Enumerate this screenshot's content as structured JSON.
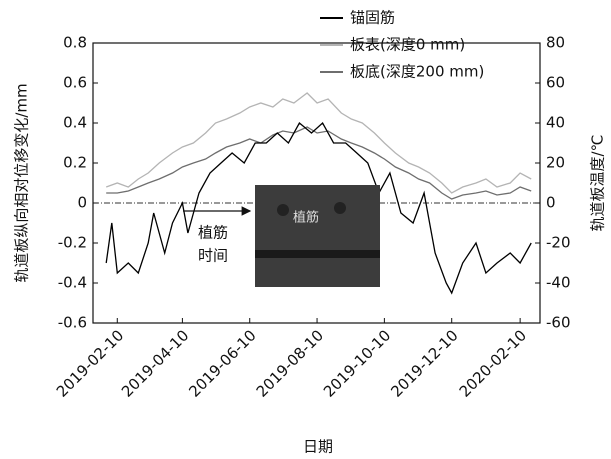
{
  "chart_data": {
    "type": "line",
    "x_label": "日期",
    "y_label": "轨道板纵向相对位移变化/mm",
    "y2_label": "轨道板温度/℃",
    "xlim": [
      "2019-01-19",
      "2020-02-28"
    ],
    "xticks": [
      "2019-02-10",
      "2019-04-10",
      "2019-06-10",
      "2019-08-10",
      "2019-10-10",
      "2019-12-10",
      "2020-02-10"
    ],
    "ylim": [
      -0.6,
      0.8
    ],
    "yticks": [
      0.8,
      0.6,
      0.4,
      0.2,
      0,
      -0.2,
      -0.4,
      -0.6
    ],
    "y2lim": [
      -60,
      80
    ],
    "y2ticks": [
      80,
      60,
      40,
      20,
      0,
      -20,
      -40,
      -60
    ],
    "reference_line": 0,
    "annotation": [
      "植筋",
      "时间"
    ],
    "inset_text": "植筋",
    "series": [
      {
        "name": "板表(深度0 mm)",
        "color": "#b4b4b4",
        "axis": "y2",
        "x": [
          "2019-01-31",
          "2019-02-10",
          "2019-02-20",
          "2019-03-01",
          "2019-03-10",
          "2019-03-20",
          "2019-04-01",
          "2019-04-10",
          "2019-04-20",
          "2019-05-01",
          "2019-05-10",
          "2019-05-20",
          "2019-06-01",
          "2019-06-10",
          "2019-06-20",
          "2019-07-01",
          "2019-07-10",
          "2019-07-20",
          "2019-08-01",
          "2019-08-10",
          "2019-08-20",
          "2019-09-01",
          "2019-09-10",
          "2019-09-20",
          "2019-10-01",
          "2019-10-10",
          "2019-10-20",
          "2019-11-01",
          "2019-11-10",
          "2019-11-20",
          "2019-12-01",
          "2019-12-10",
          "2019-12-20",
          "2020-01-01",
          "2020-01-10",
          "2020-01-20",
          "2020-02-01",
          "2020-02-10",
          "2020-02-20"
        ],
        "values": [
          8,
          10,
          8,
          12,
          15,
          20,
          25,
          28,
          30,
          35,
          40,
          42,
          45,
          48,
          50,
          48,
          52,
          50,
          55,
          50,
          52,
          45,
          42,
          40,
          35,
          30,
          25,
          20,
          18,
          15,
          10,
          5,
          8,
          10,
          12,
          8,
          10,
          15,
          12
        ]
      },
      {
        "name": "板底(深度200 mm)",
        "color": "#6e6e6e",
        "axis": "y2",
        "x": [
          "2019-01-31",
          "2019-02-10",
          "2019-02-20",
          "2019-03-01",
          "2019-03-10",
          "2019-03-20",
          "2019-04-01",
          "2019-04-10",
          "2019-04-20",
          "2019-05-01",
          "2019-05-10",
          "2019-05-20",
          "2019-06-01",
          "2019-06-10",
          "2019-06-20",
          "2019-07-01",
          "2019-07-10",
          "2019-07-20",
          "2019-08-01",
          "2019-08-10",
          "2019-08-20",
          "2019-09-01",
          "2019-09-10",
          "2019-09-20",
          "2019-10-01",
          "2019-10-10",
          "2019-10-20",
          "2019-11-01",
          "2019-11-10",
          "2019-11-20",
          "2019-12-01",
          "2019-12-10",
          "2019-12-20",
          "2020-01-01",
          "2020-01-10",
          "2020-01-20",
          "2020-02-01",
          "2020-02-10",
          "2020-02-20"
        ],
        "values": [
          5,
          5,
          6,
          8,
          10,
          12,
          15,
          18,
          20,
          22,
          25,
          28,
          30,
          32,
          30,
          34,
          36,
          35,
          38,
          35,
          36,
          32,
          30,
          28,
          25,
          22,
          18,
          15,
          12,
          10,
          5,
          2,
          4,
          5,
          6,
          4,
          5,
          8,
          6
        ]
      },
      {
        "name": "锚固筋",
        "color": "#000000",
        "axis": "y",
        "x": [
          "2019-01-31",
          "2019-02-05",
          "2019-02-10",
          "2019-02-20",
          "2019-03-01",
          "2019-03-10",
          "2019-03-15",
          "2019-03-25",
          "2019-04-01",
          "2019-04-10",
          "2019-04-15",
          "2019-04-25",
          "2019-05-05",
          "2019-05-15",
          "2019-05-25",
          "2019-06-05",
          "2019-06-15",
          "2019-06-25",
          "2019-07-05",
          "2019-07-15",
          "2019-07-25",
          "2019-08-05",
          "2019-08-15",
          "2019-08-25",
          "2019-09-05",
          "2019-09-15",
          "2019-09-25",
          "2019-10-05",
          "2019-10-15",
          "2019-10-25",
          "2019-11-05",
          "2019-11-15",
          "2019-11-25",
          "2019-12-05",
          "2019-12-10",
          "2019-12-20",
          "2020-01-01",
          "2020-01-10",
          "2020-01-20",
          "2020-02-01",
          "2020-02-10",
          "2020-02-20"
        ],
        "values": [
          -0.3,
          -0.1,
          -0.35,
          -0.3,
          -0.35,
          -0.2,
          -0.05,
          -0.25,
          -0.1,
          0.0,
          -0.15,
          0.05,
          0.15,
          0.2,
          0.25,
          0.2,
          0.3,
          0.3,
          0.35,
          0.3,
          0.4,
          0.35,
          0.4,
          0.3,
          0.3,
          0.25,
          0.2,
          0.05,
          0.15,
          -0.05,
          -0.1,
          0.05,
          -0.25,
          -0.4,
          -0.45,
          -0.3,
          -0.2,
          -0.35,
          -0.3,
          -0.25,
          -0.3,
          -0.2
        ]
      }
    ],
    "legend_order": [
      2,
      0,
      1
    ]
  }
}
